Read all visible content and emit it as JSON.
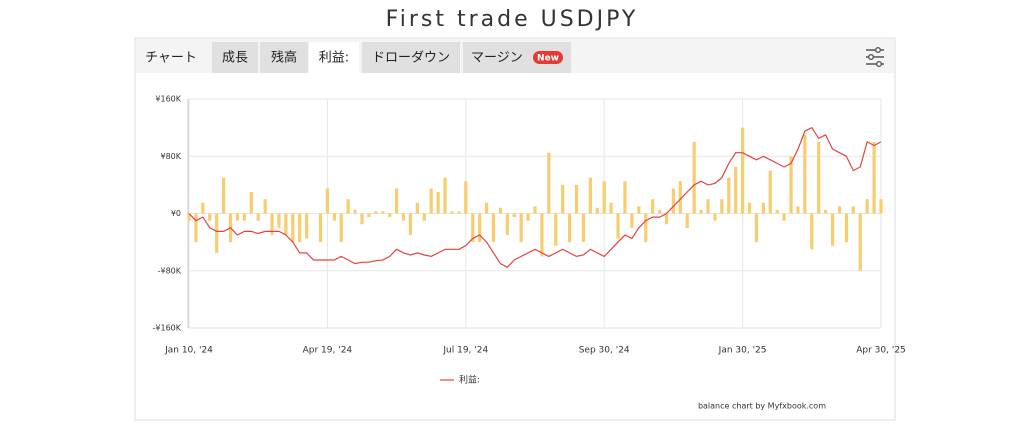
{
  "title": "First trade USDJPY",
  "tabs": [
    {
      "label": "チャート"
    },
    {
      "label": "成長"
    },
    {
      "label": "残高"
    },
    {
      "label": "利益:"
    },
    {
      "label": "ドローダウン"
    },
    {
      "label": "マージン",
      "badge": "New"
    }
  ],
  "credit": "balance chart by Myfxbook.com",
  "chart_data": {
    "type": "bar-line",
    "categories": [
      "Jan 10, '24",
      null,
      null,
      null,
      null,
      null,
      null,
      null,
      null,
      null,
      null,
      null,
      null,
      null,
      null,
      null,
      null,
      null,
      null,
      null,
      "Apr 19, '24",
      null,
      null,
      null,
      null,
      null,
      null,
      null,
      null,
      null,
      null,
      null,
      null,
      null,
      null,
      null,
      null,
      null,
      null,
      null,
      "Jul 19, '24",
      null,
      null,
      null,
      null,
      null,
      null,
      null,
      null,
      null,
      null,
      null,
      null,
      null,
      null,
      null,
      null,
      null,
      null,
      null,
      "Sep 30, '24",
      null,
      null,
      null,
      null,
      null,
      null,
      null,
      null,
      null,
      null,
      null,
      null,
      null,
      null,
      null,
      null,
      null,
      null,
      null,
      "Jan 30, '25",
      null,
      null,
      null,
      null,
      null,
      null,
      null,
      null,
      null,
      null,
      null,
      null,
      null,
      null,
      null,
      null,
      null,
      null,
      null,
      "Apr 30, '25"
    ],
    "series": [
      {
        "kind": "bar",
        "color": "#f7cd6e",
        "values": [
          -10000,
          -40000,
          15000,
          -10000,
          -55000,
          50000,
          -40000,
          -10000,
          -10000,
          30000,
          -10000,
          20000,
          -30000,
          -20000,
          -30000,
          -40000,
          -40000,
          -35000,
          0,
          -40000,
          35000,
          -10000,
          -40000,
          20000,
          5000,
          -15000,
          -5000,
          3000,
          3000,
          -5000,
          35000,
          -10000,
          -30000,
          15000,
          -10000,
          35000,
          30000,
          50000,
          3000,
          3000,
          45000,
          -40000,
          -40000,
          15000,
          -40000,
          8000,
          -30000,
          -5000,
          -40000,
          -10000,
          10000,
          -60000,
          85000,
          -45000,
          40000,
          -40000,
          40000,
          -40000,
          50000,
          8000,
          45000,
          15000,
          -35000,
          45000,
          -20000,
          10000,
          -40000,
          20000,
          5000,
          -15000,
          35000,
          45000,
          -20000,
          100000,
          5000,
          20000,
          -10000,
          20000,
          50000,
          65000,
          120000,
          15000,
          -40000,
          15000,
          60000,
          5000,
          -10000,
          80000,
          10000,
          110000,
          -50000,
          100000,
          5000,
          -45000,
          10000,
          -40000,
          10000,
          -80000,
          20000,
          100000,
          20000
        ]
      },
      {
        "kind": "line",
        "name": "利益:",
        "color": "#e8413c",
        "values": [
          0,
          -10000,
          -5000,
          -20000,
          -25000,
          -25000,
          -20000,
          -30000,
          -25000,
          -25000,
          -28000,
          -25000,
          -25000,
          -25000,
          -30000,
          -40000,
          -55000,
          -55000,
          -65000,
          -65000,
          -65000,
          -65000,
          -60000,
          -65000,
          -70000,
          -68000,
          -68000,
          -66000,
          -65000,
          -60000,
          -50000,
          -55000,
          -58000,
          -55000,
          -58000,
          -60000,
          -55000,
          -50000,
          -50000,
          -50000,
          -45000,
          -35000,
          -30000,
          -40000,
          -55000,
          -70000,
          -75000,
          -65000,
          -60000,
          -55000,
          -50000,
          -55000,
          -60000,
          -55000,
          -50000,
          -55000,
          -60000,
          -58000,
          -50000,
          -55000,
          -60000,
          -50000,
          -40000,
          -30000,
          -35000,
          -20000,
          -10000,
          -5000,
          -5000,
          0,
          10000,
          20000,
          30000,
          40000,
          45000,
          40000,
          42000,
          50000,
          70000,
          85000,
          85000,
          80000,
          75000,
          80000,
          75000,
          70000,
          65000,
          70000,
          90000,
          115000,
          120000,
          105000,
          110000,
          90000,
          85000,
          80000,
          60000,
          65000,
          100000,
          95000,
          100000
        ]
      }
    ],
    "ylim": [
      -160000,
      160000
    ],
    "yticks": [
      {
        "value": -160000,
        "label": "-¥160K"
      },
      {
        "value": -80000,
        "label": "-¥80K"
      },
      {
        "value": 0,
        "label": "¥0"
      },
      {
        "value": 80000,
        "label": "¥80K"
      },
      {
        "value": 160000,
        "label": "¥160K"
      }
    ],
    "grid": true
  }
}
